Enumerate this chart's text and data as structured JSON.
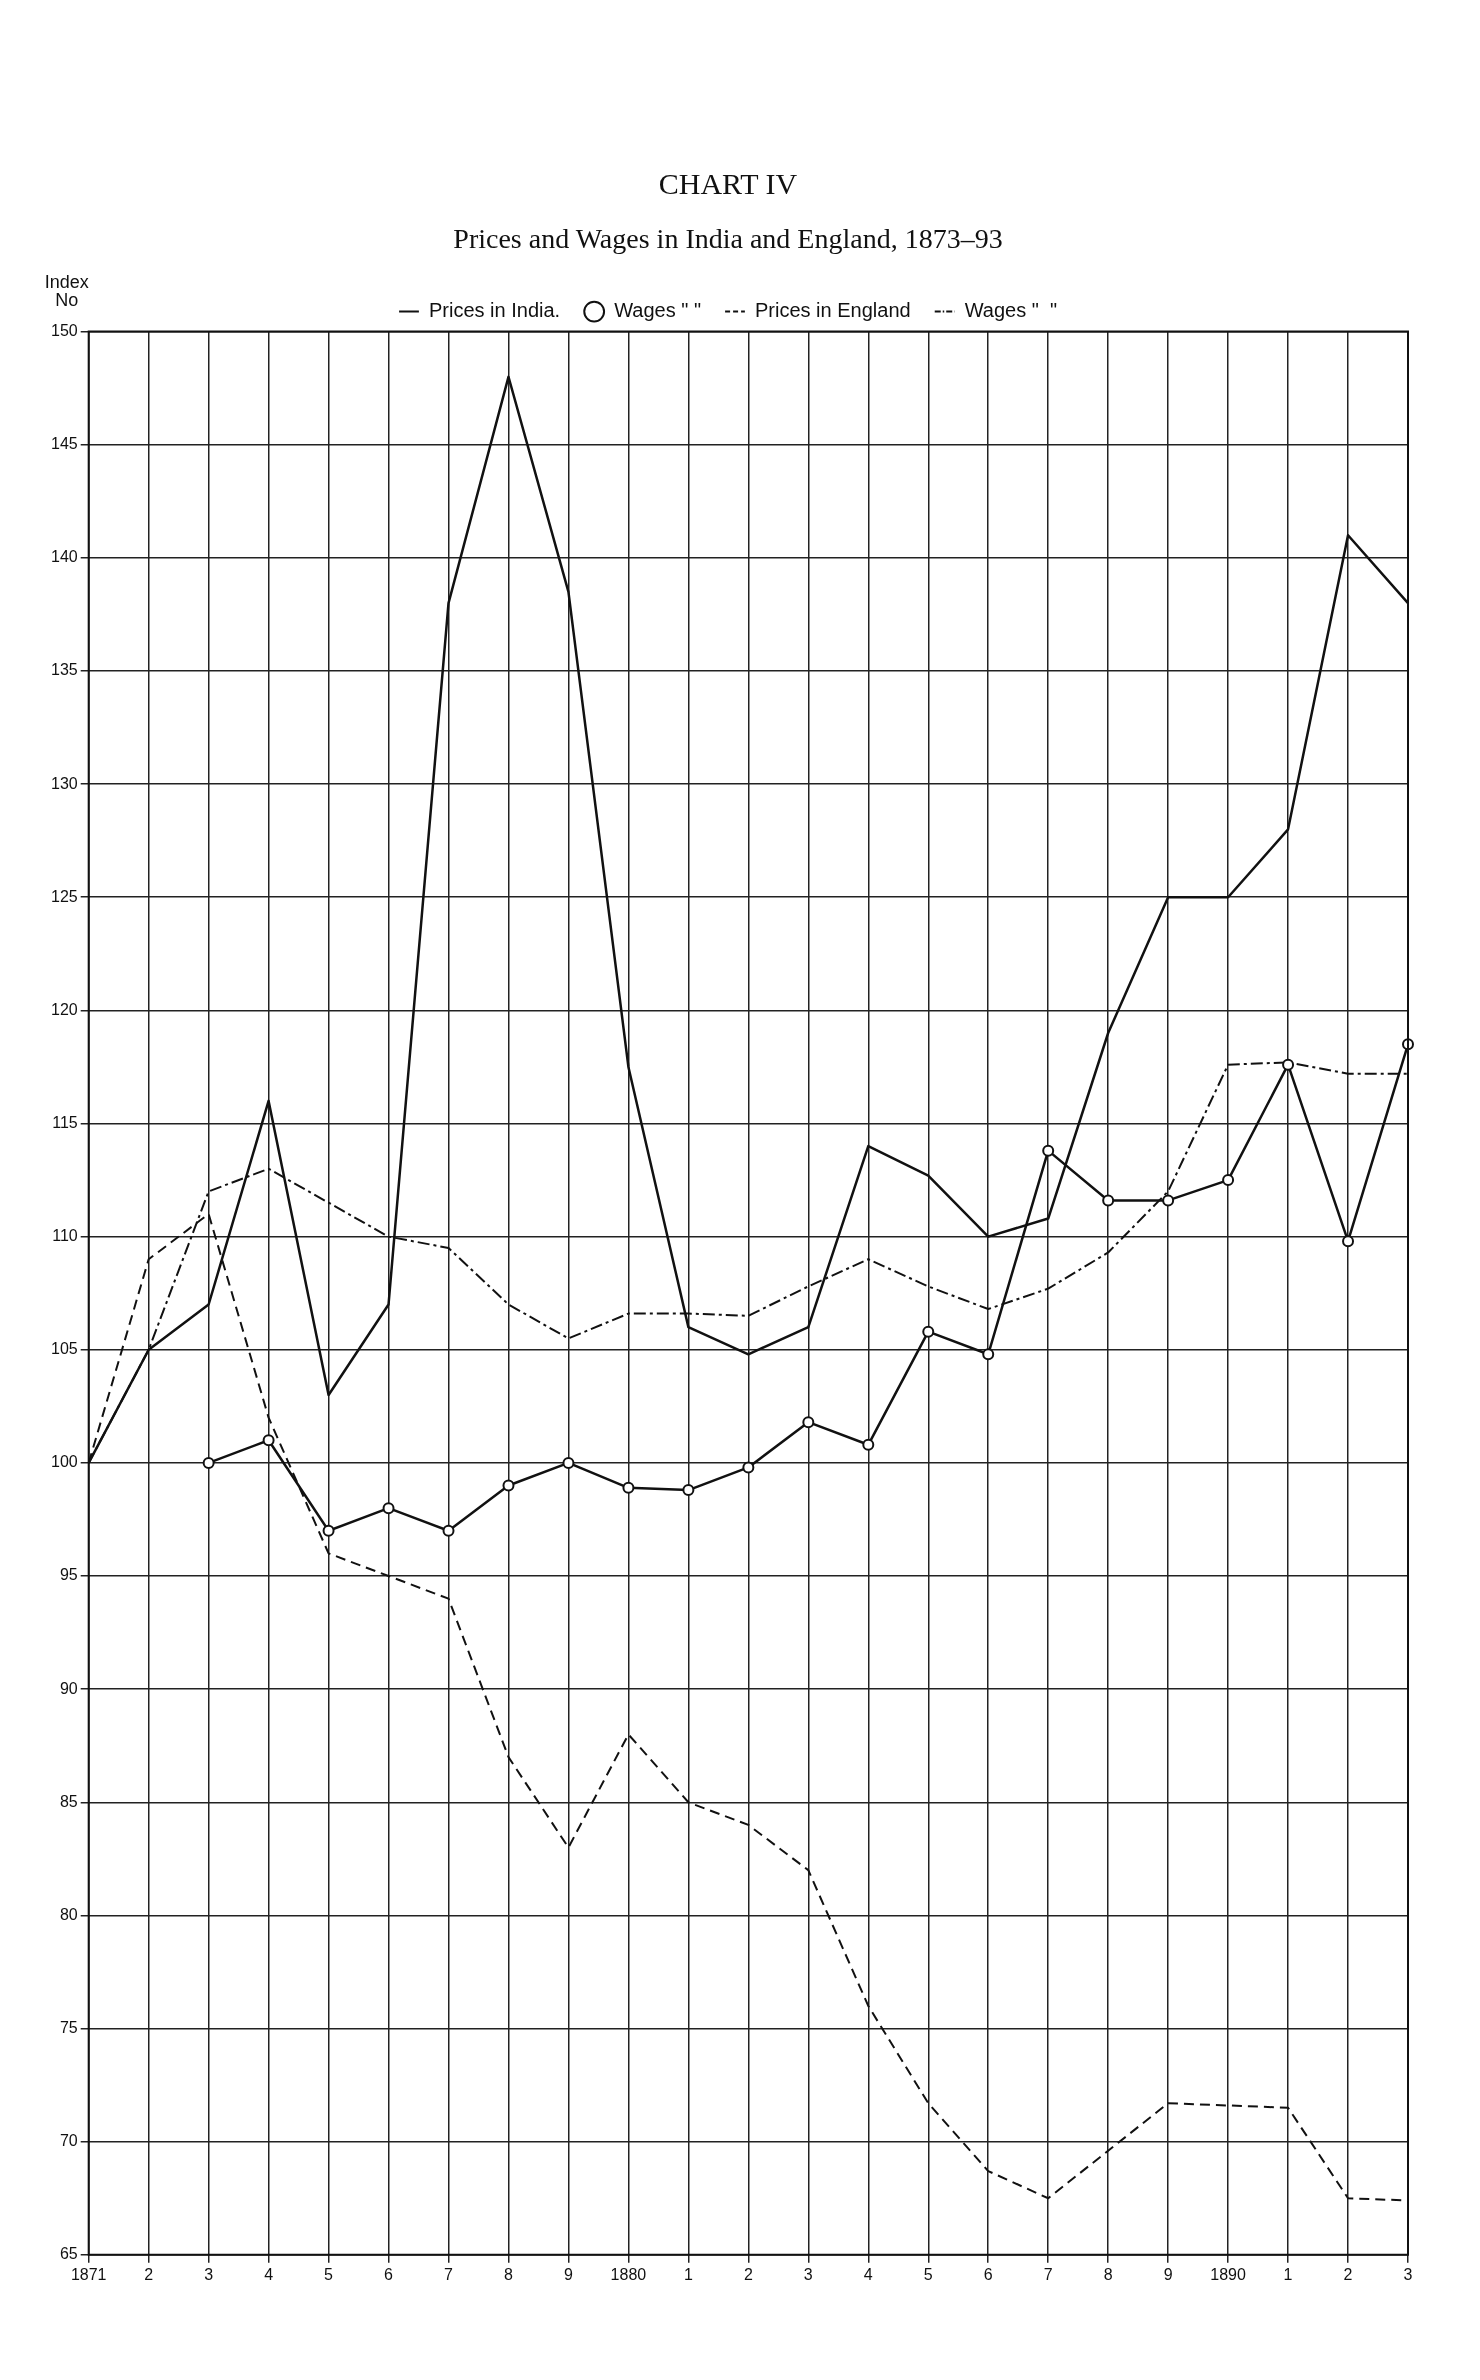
{
  "chart_data": {
    "type": "line",
    "title": "CHART IV",
    "subtitle": "Prices and Wages in India and England, 1873–93",
    "ylabel": "Index No",
    "categories": [
      "1871",
      "2",
      "3",
      "4",
      "5",
      "6",
      "7",
      "8",
      "9",
      "1880",
      "1",
      "2",
      "3",
      "4",
      "5",
      "6",
      "7",
      "8",
      "9",
      "1890",
      "1",
      "2",
      "3"
    ],
    "series": [
      {
        "name": "Prices in India.",
        "color": "#111111",
        "line_style": "solid",
        "marker": "none",
        "values": [
          100,
          105,
          107,
          116,
          103,
          107,
          138,
          148,
          138.5,
          117.5,
          106,
          104.8,
          106,
          114,
          112.7,
          110,
          110.8,
          119,
          125,
          125,
          128,
          141,
          138
        ]
      },
      {
        "name": "Wages \" \"",
        "color": "#111111",
        "line_style": "solid",
        "marker": "circle",
        "values": [
          null,
          null,
          100,
          101,
          97,
          98,
          97,
          99,
          100,
          98.9,
          98.8,
          99.8,
          101.8,
          100.8,
          105.8,
          104.8,
          113.8,
          111.6,
          111.6,
          112.5,
          117.6,
          109.8,
          118.5
        ]
      },
      {
        "name": "Prices in England",
        "color": "#111111",
        "line_style": "dashed",
        "marker": "none",
        "values": [
          100,
          109,
          111,
          102,
          96,
          95,
          94,
          87,
          83,
          88,
          85,
          84,
          82,
          76,
          71.7,
          68.7,
          67.5,
          69.6,
          71.7,
          71.6,
          71.5,
          67.5,
          67.4
        ]
      },
      {
        "name": "Wages \"  \"",
        "color": "#111111",
        "line_style": "dotted",
        "marker": "none",
        "values": [
          100,
          105,
          112,
          113,
          111.5,
          110,
          109.5,
          107,
          105.5,
          106.6,
          106.6,
          106.5,
          107.8,
          109,
          107.8,
          106.8,
          107.7,
          109.3,
          112,
          117.6,
          117.7,
          117.2,
          117.2
        ]
      }
    ],
    "ylim": [
      65,
      150
    ],
    "yticks": [
      65,
      70,
      75,
      80,
      85,
      90,
      95,
      100,
      105,
      110,
      115,
      120,
      125,
      130,
      135,
      140,
      145,
      150
    ],
    "grid": true,
    "legend": "top"
  }
}
